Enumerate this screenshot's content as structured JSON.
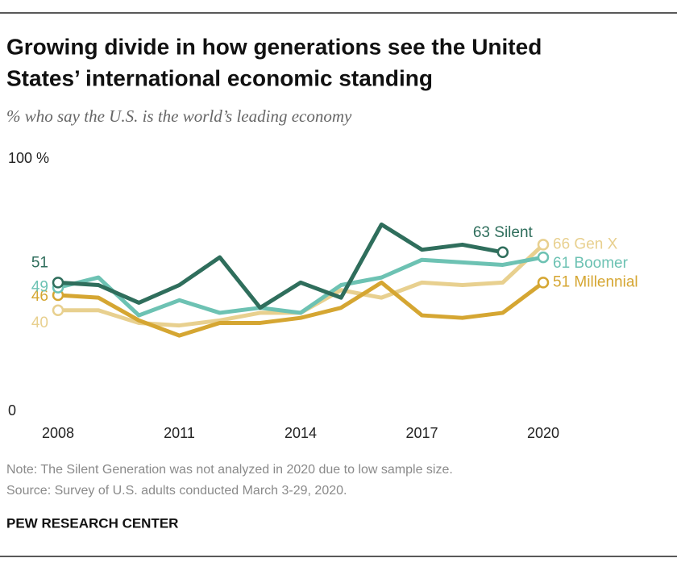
{
  "chart_data": {
    "type": "line",
    "title_lines": [
      "Growing divide in how generations see the United",
      "States’ international economic standing"
    ],
    "subtitle": "% who say the U.S. is the world’s leading economy",
    "x": [
      2008,
      2009,
      2010,
      2011,
      2012,
      2013,
      2014,
      2015,
      2016,
      2017,
      2018,
      2019,
      2020
    ],
    "xlim": [
      2008,
      2020
    ],
    "xticks": [
      2008,
      2011,
      2014,
      2017,
      2020
    ],
    "ylim": [
      0,
      100
    ],
    "yticks": [
      0,
      {
        "value": 100,
        "label": "100 %"
      }
    ],
    "grid": false,
    "series": [
      {
        "name": "Silent",
        "color": "#2f6e5c",
        "values": [
          51,
          50,
          43,
          50,
          61,
          41,
          51,
          45,
          74,
          64,
          66,
          63,
          null
        ]
      },
      {
        "name": "Boomer",
        "color": "#6dc2b3",
        "values": [
          49,
          53,
          38,
          44,
          39,
          41,
          39,
          50,
          53,
          60,
          59,
          58,
          61
        ]
      },
      {
        "name": "Millennial",
        "color": "#d5a632",
        "values": [
          46,
          45,
          36,
          30,
          35,
          35,
          37,
          41,
          51,
          38,
          37,
          39,
          51
        ]
      },
      {
        "name": "Gen X",
        "color": "#e8d08f",
        "values": [
          40,
          40,
          35,
          34,
          36,
          39,
          39,
          48,
          45,
          51,
          50,
          51,
          66
        ]
      }
    ],
    "notes": [
      "Note: The Silent Generation was not analyzed in 2020 due to low sample size.",
      "Source: Survey of U.S. adults conducted March 3-29, 2020."
    ],
    "source": "PEW RESEARCH CENTER"
  }
}
